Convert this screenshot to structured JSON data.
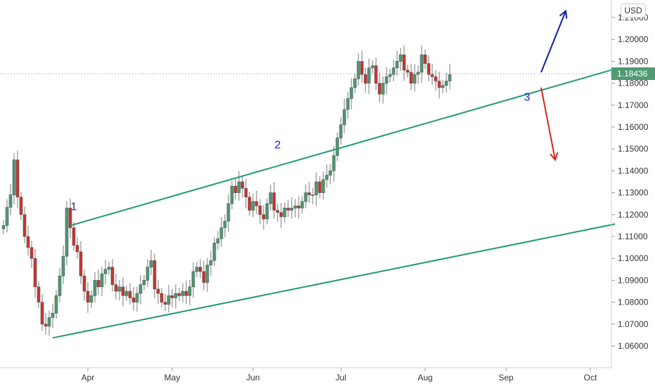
{
  "chart_data": {
    "type": "candlestick",
    "currency": "USD",
    "last_price": "1.18436",
    "y_ticks": [
      "1.21000",
      "1.20000",
      "1.19000",
      "1.18000",
      "1.17000",
      "1.16000",
      "1.15000",
      "1.14000",
      "1.13000",
      "1.12000",
      "1.11000",
      "1.10000",
      "1.09000",
      "1.08000",
      "1.07000",
      "1.06000"
    ],
    "ylim": [
      1.0535,
      1.2142
    ],
    "x_ticks": [
      "Apr",
      "May",
      "Jun",
      "Jul",
      "Aug",
      "Sep",
      "Oct"
    ],
    "x_tick_index": [
      24,
      48,
      71,
      96,
      120,
      143,
      167
    ],
    "wave_labels": [
      {
        "text": "1",
        "index": 20,
        "price": 1.122
      },
      {
        "text": "2",
        "index": 78,
        "price": 1.1502
      },
      {
        "text": "3",
        "index": 149,
        "price": 1.172
      }
    ],
    "channel_upper": {
      "start": {
        "index": 19,
        "price": 1.115
      },
      "end": {
        "index": 174,
        "price": 1.1865
      }
    },
    "channel_lower": {
      "start": {
        "index": 14,
        "price": 1.0637
      },
      "end": {
        "index": 174,
        "price": 1.1157
      }
    },
    "projection_up": {
      "start": {
        "index": 153,
        "price": 1.185
      },
      "end": {
        "index": 160,
        "price": 1.213
      }
    },
    "projection_down": {
      "start": {
        "index": 153,
        "price": 1.178
      },
      "end": {
        "index": 157,
        "price": 1.145
      }
    },
    "colors": {
      "up": "#4f9a73",
      "down": "#c8352f",
      "channel": "#1f9a75",
      "arrow_up": "#0f1fa8",
      "arrow_down": "#d7261e",
      "wave": "#1a22b8",
      "last_price_bg": "#4f9a73"
    },
    "candles_close": [
      1.115,
      1.1233,
      1.129,
      1.145,
      1.128,
      1.12,
      1.11,
      1.105,
      1.1,
      1.087,
      1.08,
      1.07,
      1.069,
      1.073,
      1.075,
      1.083,
      1.092,
      1.101,
      1.123,
      1.114,
      1.106,
      1.103,
      1.092,
      1.085,
      1.08,
      1.083,
      1.09,
      1.087,
      1.093,
      1.095,
      1.096,
      1.088,
      1.085,
      1.087,
      1.083,
      1.085,
      1.082,
      1.08,
      1.084,
      1.088,
      1.09,
      1.096,
      1.099,
      1.086,
      1.084,
      1.08,
      1.079,
      1.083,
      1.082,
      1.084,
      1.083,
      1.085,
      1.083,
      1.087,
      1.094,
      1.096,
      1.094,
      1.089,
      1.097,
      1.099,
      1.107,
      1.109,
      1.114,
      1.117,
      1.125,
      1.133,
      1.13,
      1.135,
      1.132,
      1.128,
      1.122,
      1.126,
      1.124,
      1.12,
      1.118,
      1.125,
      1.13,
      1.122,
      1.121,
      1.119,
      1.123,
      1.122,
      1.123,
      1.124,
      1.123,
      1.126,
      1.13,
      1.129,
      1.129,
      1.135,
      1.13,
      1.136,
      1.138,
      1.14,
      1.147,
      1.155,
      1.161,
      1.168,
      1.173,
      1.178,
      1.182,
      1.19,
      1.184,
      1.18,
      1.187,
      1.188,
      1.18,
      1.175,
      1.18,
      1.183,
      1.184,
      1.187,
      1.19,
      1.193,
      1.186,
      1.185,
      1.18,
      1.184,
      1.185,
      1.193,
      1.189,
      1.184,
      1.183,
      1.181,
      1.178,
      1.179,
      1.181,
      1.184
    ]
  }
}
